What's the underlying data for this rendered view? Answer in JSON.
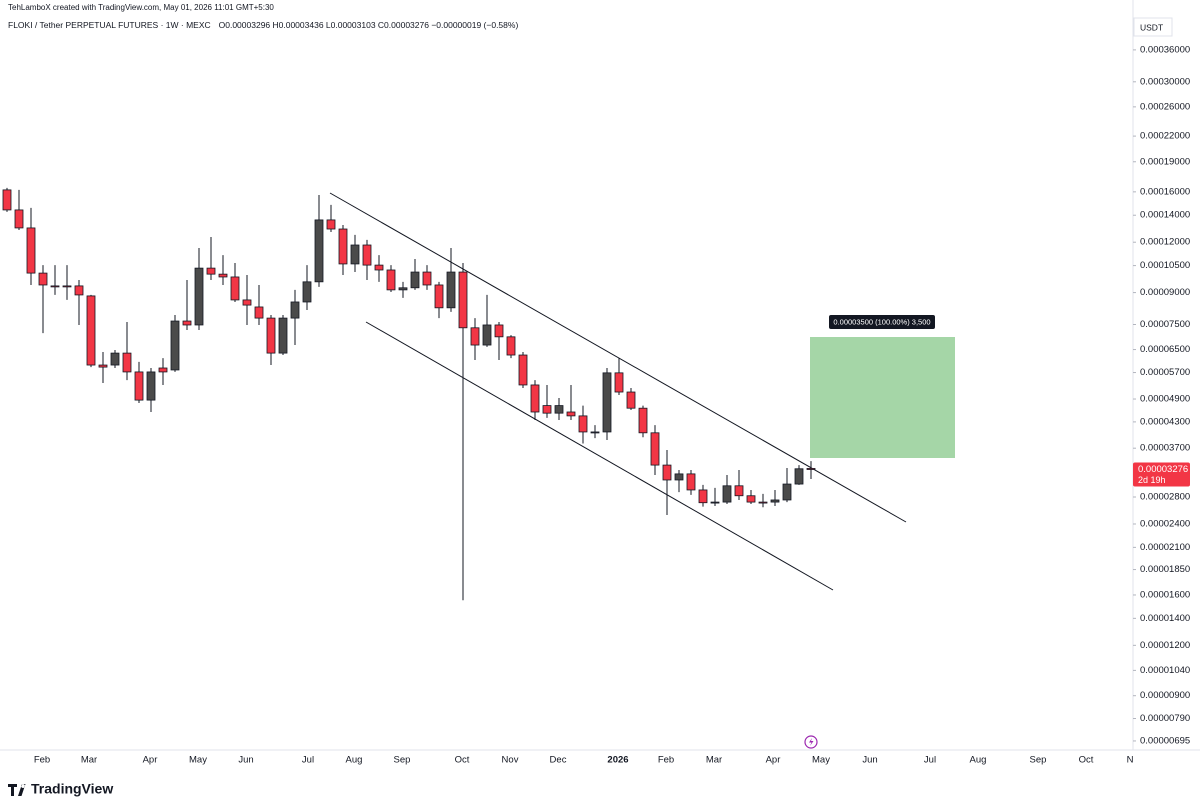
{
  "chart_data": {
    "type": "candlestick",
    "credit": "TehLamboX created with TradingView.com, May 01, 2026 11:01 GMT+5:30",
    "title": "FLOKI / Tether PERPETUAL FUTURES · 1W · MEXC",
    "ohlc_header": "O0.00003296 H0.00003436 L0.00003103 C0.00003276 −0.00000019 (−0.58%)",
    "y_axis_unit": "USDT",
    "log_scale": true,
    "grid": false,
    "up_color": "#4a4a4a",
    "down_color": "#f23645",
    "ylim": [
      6.6e-06,
      0.000427
    ],
    "yticks": [
      {
        "value": 0.00036,
        "label": "0.00036000"
      },
      {
        "value": 0.0003,
        "label": "0.00030000"
      },
      {
        "value": 0.00026,
        "label": "0.00026000"
      },
      {
        "value": 0.00022,
        "label": "0.00022000"
      },
      {
        "value": 0.00019,
        "label": "0.00019000"
      },
      {
        "value": 0.00016,
        "label": "0.00016000"
      },
      {
        "value": 0.00014,
        "label": "0.00014000"
      },
      {
        "value": 0.00012,
        "label": "0.00012000"
      },
      {
        "value": 0.000105,
        "label": "0.00010500"
      },
      {
        "value": 9e-05,
        "label": "0.00009000"
      },
      {
        "value": 7.5e-05,
        "label": "0.00007500"
      },
      {
        "value": 6.5e-05,
        "label": "0.00006500"
      },
      {
        "value": 5.7e-05,
        "label": "0.00005700"
      },
      {
        "value": 4.9e-05,
        "label": "0.00004900"
      },
      {
        "value": 4.3e-05,
        "label": "0.00004300"
      },
      {
        "value": 3.7e-05,
        "label": "0.00003700"
      },
      {
        "value": 2.8e-05,
        "label": "0.00002800"
      },
      {
        "value": 2.4e-05,
        "label": "0.00002400"
      },
      {
        "value": 2.1e-05,
        "label": "0.00002100"
      },
      {
        "value": 1.85e-05,
        "label": "0.00001850"
      },
      {
        "value": 1.6e-05,
        "label": "0.00001600"
      },
      {
        "value": 1.4e-05,
        "label": "0.00001400"
      },
      {
        "value": 1.2e-05,
        "label": "0.00001200"
      },
      {
        "value": 1.04e-05,
        "label": "0.00001040"
      },
      {
        "value": 9e-06,
        "label": "0.00000900"
      },
      {
        "value": 7.9e-06,
        "label": "0.00000790"
      },
      {
        "value": 6.95e-06,
        "label": "0.00000695"
      }
    ],
    "x_labels": [
      "Feb",
      "Mar",
      "Apr",
      "May",
      "Jun",
      "Jul",
      "Aug",
      "Sep",
      "Oct",
      "Nov",
      "Dec",
      "2026",
      "Feb",
      "Mar",
      "Apr",
      "May",
      "Jun",
      "Jul",
      "Aug",
      "Sep",
      "Oct",
      "N"
    ],
    "open": [
      0.0001618,
      0.0001443,
      0.0001302,
      0.0001006,
      9.35e-05,
      9.35e-05,
      9.35e-05,
      8.83e-05,
      5.95e-05,
      5.95e-05,
      6.37e-05,
      5.72e-05,
      4.87e-05,
      5.85e-05,
      5.785e-05,
      7.65e-05,
      7.48e-05,
      0.0001035,
      0.0001,
      9.84e-05,
      8.63e-05,
      8.29e-05,
      7.78e-05,
      6.37e-05,
      7.78e-05,
      8.53e-05,
      9.57e-05,
      0.0001363,
      0.0001294,
      0.000106,
      0.0001181,
      0.0001053,
      0.0001024,
      9.14e-05,
      9.25e-05,
      0.0001012,
      9.4e-05,
      8.25e-05,
      0.0001012,
      7.36e-05,
      6.67e-05,
      7.48e-05,
      6.99e-05,
      6.3e-05,
      5.31e-05,
      4.72e-05,
      4.52e-05,
      4.55e-05,
      4.45e-05,
      4.04e-05,
      4.06e-05,
      5.69e-05,
      5.1e-05,
      4.65e-05,
      4.04e-05,
      3.36e-05,
      3.086e-05,
      3.195e-05,
      2.915e-05,
      2.71e-05,
      2.72e-05,
      2.985e-05,
      2.82e-05,
      2.72e-05,
      2.72e-05,
      2.753e-05,
      3.015e-05,
      3.296e-05
    ],
    "high": [
      0.0001637,
      0.0001618,
      0.000146,
      0.0001053,
      0.0001053,
      0.0001053,
      9.67e-05,
      8.88e-05,
      6.41e-05,
      6.485e-05,
      7.61e-05,
      6.06e-05,
      5.85e-05,
      6.19e-05,
      7.92e-05,
      9.67e-05,
      0.0001161,
      0.0001236,
      0.0001115,
      0.0001066,
      9.95e-05,
      9.4e-05,
      7.92e-05,
      7.92e-05,
      9.14e-05,
      0.0001053,
      0.0001572,
      0.0001485,
      0.0001324,
      0.0001251,
      0.0001216,
      0.0001115,
      0.0001053,
      9.57e-05,
      0.000109,
      0.0001053,
      9.57e-05,
      0.0001161,
      0.0001066,
      7.78e-05,
      8.88e-05,
      7.61e-05,
      7.06e-05,
      6.41e-05,
      5.46e-05,
      5.31e-05,
      4.93e-05,
      5.31e-05,
      4.72e-05,
      4.22e-05,
      5.85e-05,
      6.19e-05,
      5.22e-05,
      4.72e-05,
      4.22e-05,
      3.663e-05,
      3.268e-05,
      3.268e-05,
      3e-05,
      2.95e-05,
      3.176e-05,
      3.268e-05,
      2.915e-05,
      2.85e-05,
      2.915e-05,
      3.305e-05,
      3.36e-05,
      3.436e-05
    ],
    "low": [
      0.0001427,
      0.0001287,
      9.4e-05,
      7.14e-05,
      8.88e-05,
      8.63e-05,
      7.48e-05,
      5.88e-05,
      5.37e-05,
      5.85e-05,
      5.46e-05,
      4.79e-05,
      4.55e-05,
      5.31e-05,
      5.72e-05,
      7.27e-05,
      7.27e-05,
      9.67e-05,
      9.4e-05,
      8.53e-05,
      7.48e-05,
      7.48e-05,
      5.95e-05,
      6.3e-05,
      6.67e-05,
      8.15e-05,
      9.3e-05,
      0.0001272,
      9.95e-05,
      0.0001012,
      9.67e-05,
      9.57e-05,
      9.03e-05,
      8.73e-05,
      9.14e-05,
      9.14e-05,
      7.78e-05,
      8.06e-05,
      1.553e-05,
      6.125e-05,
      6.6e-05,
      6.125e-05,
      6.19e-05,
      5.22e-05,
      4.348e-05,
      4.4e-05,
      4.348e-05,
      4.348e-05,
      3.8e-05,
      3.92e-05,
      3.878e-05,
      5.015e-05,
      4.603e-05,
      3.94e-05,
      3.176e-05,
      2.527e-05,
      2.88e-05,
      2.834e-05,
      2.65e-05,
      2.66e-05,
      2.69e-05,
      2.753e-05,
      2.69e-05,
      2.64e-05,
      2.66e-05,
      2.72e-05,
      3e-05,
      3.103e-05
    ],
    "close": [
      0.0001443,
      0.0001302,
      0.0001006,
      9.4e-05,
      9.3e-05,
      9.33e-05,
      8.88e-05,
      5.95e-05,
      5.88e-05,
      6.37e-05,
      5.72e-05,
      4.87e-05,
      5.72e-05,
      5.72e-05,
      7.65e-05,
      7.48e-05,
      0.0001035,
      0.0001,
      9.84e-05,
      8.63e-05,
      8.38e-05,
      7.78e-05,
      6.37e-05,
      7.78e-05,
      8.53e-05,
      9.57e-05,
      0.0001363,
      0.0001294,
      0.000106,
      0.0001181,
      0.0001053,
      0.0001024,
      9.14e-05,
      9.25e-05,
      0.0001012,
      9.4e-05,
      8.25e-05,
      0.0001012,
      7.36e-05,
      6.67e-05,
      7.48e-05,
      6.99e-05,
      6.3e-05,
      5.31e-05,
      4.55e-05,
      4.52e-05,
      4.72e-05,
      4.45e-05,
      4.06e-05,
      4.06e-05,
      5.69e-05,
      5.1e-05,
      4.65e-05,
      4.04e-05,
      3.36e-05,
      3.086e-05,
      3.195e-05,
      2.915e-05,
      2.71e-05,
      2.72e-05,
      2.985e-05,
      2.82e-05,
      2.72e-05,
      2.71e-05,
      2.753e-05,
      3.015e-05,
      3.29e-05,
      3.276e-05
    ],
    "price_label": "0.00003276",
    "countdown": "2d 19h",
    "target_label": "0.00003500 (100.00%) 3,500",
    "brand": "TradingView"
  }
}
